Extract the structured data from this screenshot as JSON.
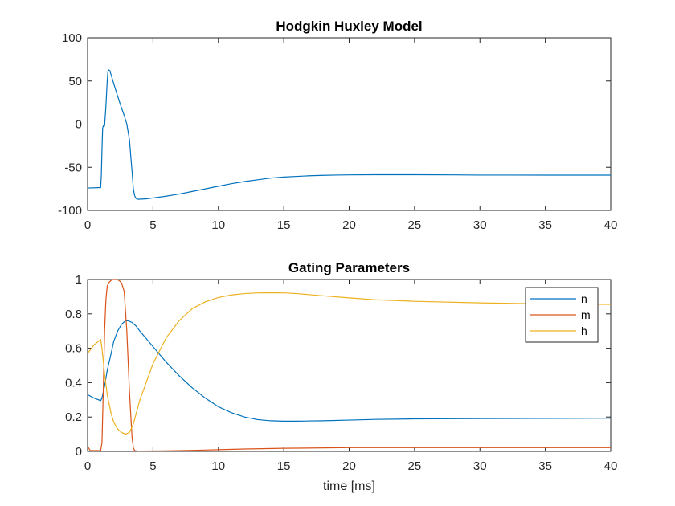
{
  "chart_data": [
    {
      "type": "line",
      "title": "Hodgkin Huxley Model",
      "xlabel": "",
      "ylabel": "",
      "xlim": [
        0,
        40
      ],
      "ylim": [
        -100,
        100
      ],
      "xticks": [
        0,
        5,
        10,
        15,
        20,
        25,
        30,
        35,
        40
      ],
      "yticks": [
        -100,
        -50,
        0,
        50,
        100
      ],
      "grid": false,
      "series": [
        {
          "color": "#0072BD",
          "x": [
            0,
            1,
            1.05,
            1.1,
            1.15,
            1.2,
            1.3,
            1.4,
            1.5,
            1.55,
            1.6,
            1.7,
            1.8,
            2.0,
            2.2,
            2.5,
            2.8,
            3.0,
            3.2,
            3.4,
            3.5,
            3.6,
            3.7,
            3.8,
            4.0,
            4.5,
            5,
            6,
            7,
            8,
            9,
            10,
            11,
            12,
            13,
            14,
            15,
            16,
            17,
            18,
            19,
            20,
            22,
            25,
            28,
            30,
            32,
            35,
            38,
            40
          ],
          "y": [
            -74,
            -73.5,
            -60,
            -30,
            -5,
            -2,
            -2,
            20,
            50,
            60,
            63,
            62,
            57,
            47,
            37,
            23,
            10,
            0,
            -18,
            -55,
            -75,
            -83,
            -86,
            -87,
            -87,
            -86.5,
            -85.5,
            -83.5,
            -81,
            -78,
            -75,
            -72,
            -69,
            -66.5,
            -64.5,
            -62.5,
            -61.3,
            -60.5,
            -59.8,
            -59.3,
            -59,
            -58.8,
            -58.6,
            -58.6,
            -58.8,
            -59,
            -59,
            -59.1,
            -59.1,
            -59.1
          ]
        }
      ]
    },
    {
      "type": "line",
      "title": "Gating Parameters",
      "xlabel": "time [ms]",
      "ylabel": "",
      "xlim": [
        0,
        40
      ],
      "ylim": [
        0,
        1
      ],
      "xticks": [
        0,
        5,
        10,
        15,
        20,
        25,
        30,
        35,
        40
      ],
      "yticks": [
        0,
        0.2,
        0.4,
        0.6,
        0.8,
        1
      ],
      "grid": false,
      "legend": "top-right",
      "series": [
        {
          "name": "n",
          "color": "#0072BD",
          "x": [
            0,
            0.5,
            1.0,
            1.1,
            1.3,
            1.5,
            1.8,
            2.0,
            2.3,
            2.6,
            2.9,
            3.1,
            3.4,
            3.7,
            4,
            5,
            6,
            7,
            8,
            9,
            10,
            11,
            12,
            13,
            14,
            15,
            16,
            18,
            20,
            22,
            25,
            30,
            35,
            40
          ],
          "y": [
            0.33,
            0.31,
            0.295,
            0.31,
            0.38,
            0.47,
            0.57,
            0.64,
            0.7,
            0.74,
            0.76,
            0.76,
            0.75,
            0.73,
            0.7,
            0.61,
            0.52,
            0.44,
            0.37,
            0.31,
            0.26,
            0.225,
            0.2,
            0.185,
            0.178,
            0.176,
            0.176,
            0.178,
            0.182,
            0.186,
            0.189,
            0.191,
            0.192,
            0.193
          ]
        },
        {
          "name": "m",
          "color": "#D95319",
          "x": [
            0,
            0.2,
            0.5,
            1.0,
            1.1,
            1.2,
            1.3,
            1.4,
            1.5,
            1.6,
            1.8,
            2.0,
            2.2,
            2.4,
            2.6,
            2.8,
            3.0,
            3.2,
            3.4,
            3.5,
            3.6,
            3.8,
            4,
            6,
            8,
            10,
            12,
            15,
            20,
            25,
            30,
            35,
            40
          ],
          "y": [
            0.03,
            0.005,
            0.005,
            0.005,
            0.05,
            0.35,
            0.7,
            0.88,
            0.96,
            0.98,
            0.995,
            1.0,
            1.0,
            0.995,
            0.98,
            0.93,
            0.7,
            0.35,
            0.08,
            0.02,
            0.005,
            0.002,
            0.002,
            0.003,
            0.006,
            0.01,
            0.014,
            0.018,
            0.022,
            0.022,
            0.022,
            0.022,
            0.022
          ]
        },
        {
          "name": "h",
          "color": "#EDB120",
          "x": [
            0,
            0.5,
            1.0,
            1.1,
            1.3,
            1.5,
            1.8,
            2.0,
            2.3,
            2.6,
            2.9,
            3.2,
            3.5,
            4,
            5,
            6,
            7,
            8,
            9,
            10,
            11,
            12,
            13,
            14,
            15,
            16,
            18,
            20,
            22,
            25,
            30,
            35,
            40
          ],
          "y": [
            0.57,
            0.62,
            0.65,
            0.6,
            0.45,
            0.33,
            0.22,
            0.17,
            0.13,
            0.11,
            0.1,
            0.11,
            0.16,
            0.3,
            0.51,
            0.66,
            0.76,
            0.83,
            0.87,
            0.895,
            0.91,
            0.918,
            0.922,
            0.923,
            0.922,
            0.918,
            0.905,
            0.893,
            0.882,
            0.873,
            0.864,
            0.858,
            0.855
          ]
        }
      ]
    }
  ]
}
